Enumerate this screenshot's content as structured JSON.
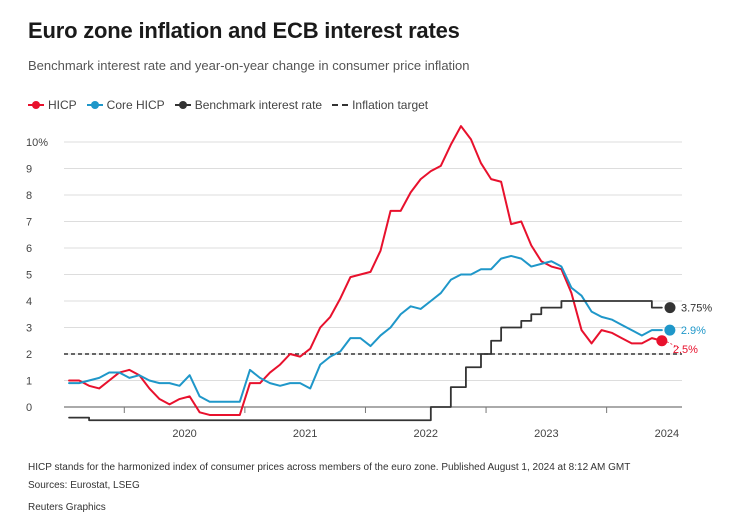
{
  "header": {
    "title": "Euro zone inflation and ECB interest rates",
    "subtitle": "Benchmark interest rate and year-on-year change in consumer price inflation"
  },
  "legend": {
    "hicp": "HICP",
    "core": "Core HICP",
    "rate": "Benchmark interest rate",
    "target": "Inflation target"
  },
  "colors": {
    "hicp": "#e8112d",
    "core": "#1f97c9",
    "rate": "#333333",
    "target": "#333333",
    "grid": "#dddddd"
  },
  "chart_data": {
    "type": "line",
    "title": "Euro zone inflation and ECB interest rates",
    "ylim": [
      0,
      10
    ],
    "yticks": [
      {
        "value": 0,
        "label": "0"
      },
      {
        "value": 1,
        "label": "1"
      },
      {
        "value": 2,
        "label": "2"
      },
      {
        "value": 3,
        "label": "3"
      },
      {
        "value": 4,
        "label": "4"
      },
      {
        "value": 5,
        "label": "5"
      },
      {
        "value": 6,
        "label": "6"
      },
      {
        "value": 7,
        "label": "7"
      },
      {
        "value": 8,
        "label": "8"
      },
      {
        "value": 9,
        "label": "9"
      },
      {
        "value": 10,
        "label": "10%"
      }
    ],
    "xticks": [
      {
        "value": 2020.0,
        "label": "2020"
      },
      {
        "value": 2021.0,
        "label": "2021"
      },
      {
        "value": 2022.0,
        "label": "2022"
      },
      {
        "value": 2023.0,
        "label": "2023"
      },
      {
        "value": 2024.0,
        "label": "2024"
      }
    ],
    "inflation_target": 2,
    "series": [
      {
        "name": "HICP",
        "key": "hicp",
        "points": [
          [
            2019.542,
            1.0
          ],
          [
            2019.625,
            1.0
          ],
          [
            2019.708,
            0.8
          ],
          [
            2019.792,
            0.7
          ],
          [
            2019.875,
            1.0
          ],
          [
            2019.958,
            1.3
          ],
          [
            2020.042,
            1.4
          ],
          [
            2020.125,
            1.2
          ],
          [
            2020.208,
            0.7
          ],
          [
            2020.292,
            0.3
          ],
          [
            2020.375,
            0.1
          ],
          [
            2020.458,
            0.3
          ],
          [
            2020.542,
            0.4
          ],
          [
            2020.625,
            -0.2
          ],
          [
            2020.708,
            -0.3
          ],
          [
            2020.792,
            -0.3
          ],
          [
            2020.875,
            -0.3
          ],
          [
            2020.958,
            -0.3
          ],
          [
            2021.042,
            0.9
          ],
          [
            2021.125,
            0.9
          ],
          [
            2021.208,
            1.3
          ],
          [
            2021.292,
            1.6
          ],
          [
            2021.375,
            2.0
          ],
          [
            2021.458,
            1.9
          ],
          [
            2021.542,
            2.2
          ],
          [
            2021.625,
            3.0
          ],
          [
            2021.708,
            3.4
          ],
          [
            2021.792,
            4.1
          ],
          [
            2021.875,
            4.9
          ],
          [
            2021.958,
            5.0
          ],
          [
            2022.042,
            5.1
          ],
          [
            2022.125,
            5.9
          ],
          [
            2022.208,
            7.4
          ],
          [
            2022.292,
            7.4
          ],
          [
            2022.375,
            8.1
          ],
          [
            2022.458,
            8.6
          ],
          [
            2022.542,
            8.9
          ],
          [
            2022.625,
            9.1
          ],
          [
            2022.708,
            9.9
          ],
          [
            2022.792,
            10.6
          ],
          [
            2022.875,
            10.1
          ],
          [
            2022.958,
            9.2
          ],
          [
            2023.042,
            8.6
          ],
          [
            2023.125,
            8.5
          ],
          [
            2023.208,
            6.9
          ],
          [
            2023.292,
            7.0
          ],
          [
            2023.375,
            6.1
          ],
          [
            2023.458,
            5.5
          ],
          [
            2023.542,
            5.3
          ],
          [
            2023.625,
            5.2
          ],
          [
            2023.708,
            4.3
          ],
          [
            2023.792,
            2.9
          ],
          [
            2023.875,
            2.4
          ],
          [
            2023.958,
            2.9
          ],
          [
            2024.042,
            2.8
          ],
          [
            2024.125,
            2.6
          ],
          [
            2024.208,
            2.4
          ],
          [
            2024.292,
            2.4
          ],
          [
            2024.375,
            2.6
          ],
          [
            2024.458,
            2.5
          ]
        ],
        "end_label": "2.5%"
      },
      {
        "name": "Core HICP",
        "key": "core",
        "points": [
          [
            2019.542,
            0.9
          ],
          [
            2019.625,
            0.9
          ],
          [
            2019.708,
            1.0
          ],
          [
            2019.792,
            1.1
          ],
          [
            2019.875,
            1.3
          ],
          [
            2019.958,
            1.3
          ],
          [
            2020.042,
            1.1
          ],
          [
            2020.125,
            1.2
          ],
          [
            2020.208,
            1.0
          ],
          [
            2020.292,
            0.9
          ],
          [
            2020.375,
            0.9
          ],
          [
            2020.458,
            0.8
          ],
          [
            2020.542,
            1.2
          ],
          [
            2020.625,
            0.4
          ],
          [
            2020.708,
            0.2
          ],
          [
            2020.792,
            0.2
          ],
          [
            2020.875,
            0.2
          ],
          [
            2020.958,
            0.2
          ],
          [
            2021.042,
            1.4
          ],
          [
            2021.125,
            1.1
          ],
          [
            2021.208,
            0.9
          ],
          [
            2021.292,
            0.8
          ],
          [
            2021.375,
            0.9
          ],
          [
            2021.458,
            0.9
          ],
          [
            2021.542,
            0.7
          ],
          [
            2021.625,
            1.6
          ],
          [
            2021.708,
            1.9
          ],
          [
            2021.792,
            2.1
          ],
          [
            2021.875,
            2.6
          ],
          [
            2021.958,
            2.6
          ],
          [
            2022.042,
            2.3
          ],
          [
            2022.125,
            2.7
          ],
          [
            2022.208,
            3.0
          ],
          [
            2022.292,
            3.5
          ],
          [
            2022.375,
            3.8
          ],
          [
            2022.458,
            3.7
          ],
          [
            2022.542,
            4.0
          ],
          [
            2022.625,
            4.3
          ],
          [
            2022.708,
            4.8
          ],
          [
            2022.792,
            5.0
          ],
          [
            2022.875,
            5.0
          ],
          [
            2022.958,
            5.2
          ],
          [
            2023.042,
            5.2
          ],
          [
            2023.125,
            5.6
          ],
          [
            2023.208,
            5.7
          ],
          [
            2023.292,
            5.6
          ],
          [
            2023.375,
            5.3
          ],
          [
            2023.458,
            5.4
          ],
          [
            2023.542,
            5.5
          ],
          [
            2023.625,
            5.3
          ],
          [
            2023.708,
            4.5
          ],
          [
            2023.792,
            4.2
          ],
          [
            2023.875,
            3.6
          ],
          [
            2023.958,
            3.4
          ],
          [
            2024.042,
            3.3
          ],
          [
            2024.125,
            3.1
          ],
          [
            2024.208,
            2.9
          ],
          [
            2024.292,
            2.7
          ],
          [
            2024.375,
            2.9
          ],
          [
            2024.458,
            2.9
          ]
        ],
        "end_label": "2.9%"
      },
      {
        "name": "Benchmark interest rate",
        "key": "rate",
        "step": true,
        "points": [
          [
            2019.542,
            -0.4
          ],
          [
            2019.708,
            -0.5
          ],
          [
            2022.458,
            -0.5
          ],
          [
            2022.542,
            0.0
          ],
          [
            2022.708,
            0.75
          ],
          [
            2022.833,
            1.5
          ],
          [
            2022.958,
            2.0
          ],
          [
            2023.042,
            2.5
          ],
          [
            2023.125,
            3.0
          ],
          [
            2023.292,
            3.25
          ],
          [
            2023.375,
            3.5
          ],
          [
            2023.458,
            3.75
          ],
          [
            2023.625,
            4.0
          ],
          [
            2024.375,
            3.75
          ],
          [
            2024.458,
            3.75
          ]
        ],
        "end_label": "3.75%"
      }
    ]
  },
  "footer": {
    "note": "HICP stands for the harmonized index of consumer prices across members of the euro zone. Published August 1, 2024 at 8:12 AM GMT",
    "sources": "Sources: Eurostat, LSEG",
    "credit": "Reuters Graphics"
  }
}
